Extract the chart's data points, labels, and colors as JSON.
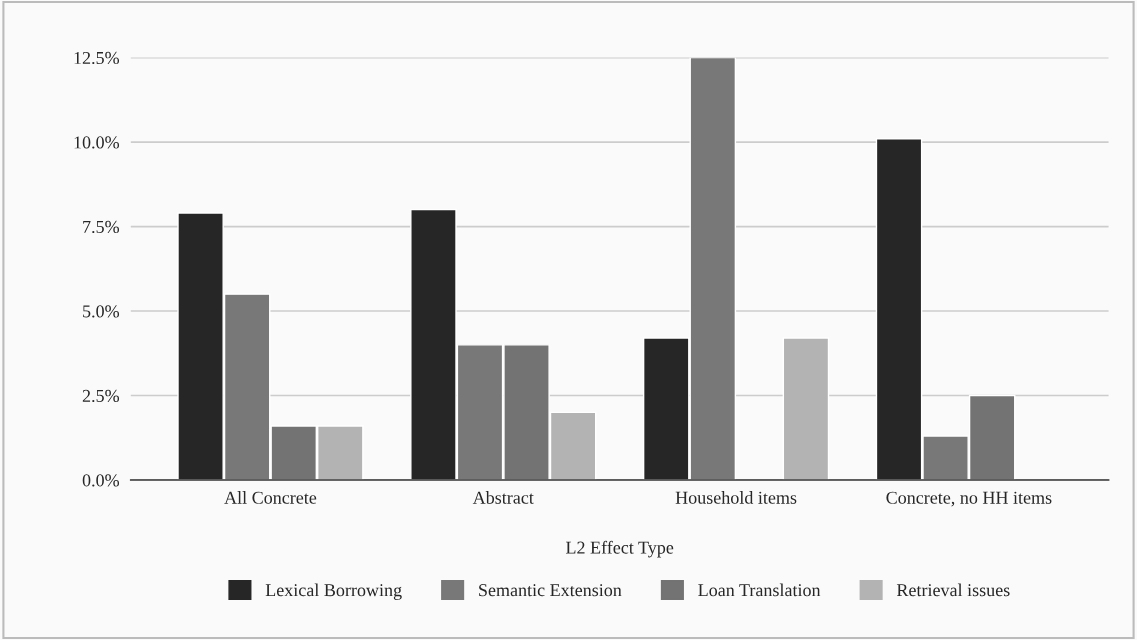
{
  "chart_data": {
    "type": "bar",
    "xlabel": "L2 Effect Type",
    "categories": [
      "All Concrete",
      "Abstract",
      "Household items",
      "Concrete, no HH items"
    ],
    "series": [
      {
        "name": "Lexical Borrowing",
        "color": "#262626",
        "values": [
          7.9,
          8.0,
          4.2,
          10.1
        ]
      },
      {
        "name": "Semantic Extension",
        "color": "#787878",
        "values": [
          5.5,
          4.0,
          12.5,
          1.3
        ]
      },
      {
        "name": "Loan Translation",
        "color": "#737373",
        "values": [
          1.6,
          4.0,
          null,
          2.5
        ]
      },
      {
        "name": "Retrieval issues",
        "color": "#b3b3b3",
        "values": [
          1.6,
          2.0,
          4.2,
          null
        ]
      }
    ],
    "ylim": [
      0,
      12.5
    ],
    "yticks": [
      {
        "value": 0,
        "label": "0.0%"
      },
      {
        "value": 2.5,
        "label": "2.5%"
      },
      {
        "value": 5,
        "label": "5.0%"
      },
      {
        "value": 7.5,
        "label": "7.5%"
      },
      {
        "value": 10,
        "label": "10.0%"
      },
      {
        "value": 12.5,
        "label": "12.5%"
      }
    ],
    "grid": "y",
    "legend": "bottom"
  }
}
